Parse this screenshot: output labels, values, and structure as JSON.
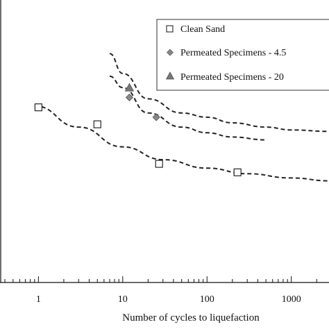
{
  "chart_data": {
    "type": "scatter",
    "xlabel": "Number of cycles to liquefaction",
    "ylabel": "",
    "xscale": "log",
    "xlim": [
      0.35,
      2800
    ],
    "ylim": [
      0.0,
      1.0
    ],
    "x_ticks": [
      {
        "value": 1,
        "label": "1"
      },
      {
        "value": 10,
        "label": "10"
      },
      {
        "value": 100,
        "label": "100"
      },
      {
        "value": 1000,
        "label": "1000"
      }
    ],
    "legend_position": "top-right",
    "series": [
      {
        "name": "Clean Sand",
        "marker": "square-open",
        "color": "#111111",
        "points": [
          {
            "x": 1,
            "y": 0.62
          },
          {
            "x": 5,
            "y": 0.56
          },
          {
            "x": 27,
            "y": 0.42
          },
          {
            "x": 230,
            "y": 0.39
          }
        ]
      },
      {
        "name": "Permeated Specimens - 4.5",
        "marker": "diamond",
        "color": "#888888",
        "points": [
          {
            "x": 12,
            "y": 0.655
          },
          {
            "x": 25,
            "y": 0.585
          }
        ]
      },
      {
        "name": "Permeated Specimens - 20",
        "marker": "triangle",
        "color": "#777777",
        "points": [
          {
            "x": 12,
            "y": 0.69
          }
        ]
      }
    ],
    "trend_lines": [
      {
        "series": "Clean Sand",
        "x": [
          0.9,
          3,
          10,
          30,
          100,
          300,
          1000,
          2800
        ],
        "y": [
          0.625,
          0.55,
          0.48,
          0.435,
          0.405,
          0.385,
          0.37,
          0.36
        ]
      },
      {
        "series": "Permeated Specimens - 4.5",
        "x": [
          7,
          10,
          20,
          50,
          100,
          200,
          500
        ],
        "y": [
          0.73,
          0.69,
          0.6,
          0.55,
          0.53,
          0.515,
          0.505
        ]
      },
      {
        "series": "Permeated Specimens - 20",
        "x": [
          7,
          10,
          20,
          50,
          100,
          200,
          500,
          1000,
          2800
        ],
        "y": [
          0.81,
          0.74,
          0.65,
          0.6,
          0.585,
          0.565,
          0.55,
          0.54,
          0.535
        ]
      }
    ]
  }
}
